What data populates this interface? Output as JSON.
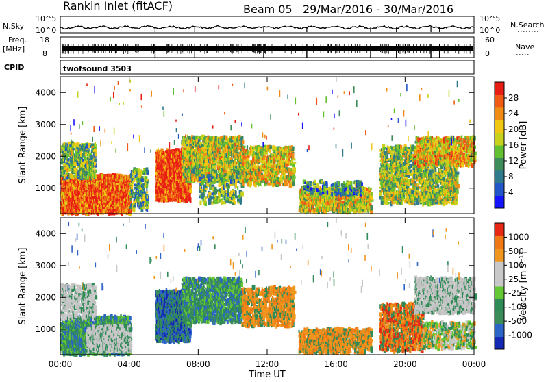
{
  "header": {
    "station": "Rankin Inlet (fitACF)",
    "beam": "Beam 05",
    "date_range": "29/Mar/2016 - 30/Mar/2016"
  },
  "panels": {
    "nsky": {
      "label": "N.Sky",
      "ticks_left": [
        "10^5",
        "10^0"
      ],
      "ticks_right": [
        "10^5",
        "10^0"
      ],
      "right_label": "N.Search"
    },
    "freq": {
      "label_top": "Freq.",
      "label_bottom": "[MHz]",
      "ticks_left": [
        "18",
        "8"
      ],
      "ticks_right": [
        "60",
        "0"
      ],
      "right_label": "Nave"
    },
    "cpid": {
      "label": "CPID",
      "program": "twofsound 3503"
    }
  },
  "chart_data": [
    {
      "type": "heatmap",
      "name": "power",
      "xlabel": "",
      "ylabel": "Slant Range [km]",
      "y_ticks": [
        "1000",
        "2000",
        "3000",
        "4000"
      ],
      "ylim": [
        200,
        4500
      ],
      "colorbar": {
        "label": "Power [dB]",
        "ticks": [
          "4",
          "8",
          "12",
          "16",
          "20",
          "24",
          "28"
        ],
        "colors": [
          "#1414ff",
          "#2255c8",
          "#2f7a8c",
          "#3e8c5a",
          "#63c030",
          "#c8d21e",
          "#f0c814",
          "#f08c14",
          "#f05a14",
          "#e81e14"
        ]
      },
      "blobs": [
        {
          "t": [
            0.0,
            4.0
          ],
          "r": [
            200,
            1400
          ],
          "level": 0.85,
          "density": 0.75
        },
        {
          "t": [
            0.0,
            2.0
          ],
          "r": [
            1300,
            2400
          ],
          "level": 0.45,
          "density": 0.45
        },
        {
          "t": [
            4.0,
            5.0
          ],
          "r": [
            300,
            1600
          ],
          "level": 0.4,
          "density": 0.35
        },
        {
          "t": [
            5.5,
            7.5
          ],
          "r": [
            600,
            2200
          ],
          "level": 0.9,
          "density": 0.7
        },
        {
          "t": [
            7.0,
            10.5
          ],
          "r": [
            1200,
            2600
          ],
          "level": 0.55,
          "density": 0.55
        },
        {
          "t": [
            8.0,
            10.5
          ],
          "r": [
            500,
            1400
          ],
          "level": 0.4,
          "density": 0.3
        },
        {
          "t": [
            10.5,
            13.5
          ],
          "r": [
            1100,
            2300
          ],
          "level": 0.6,
          "density": 0.45
        },
        {
          "t": [
            13.8,
            18.0
          ],
          "r": [
            250,
            1000
          ],
          "level": 0.6,
          "density": 0.55
        },
        {
          "t": [
            14.0,
            17.5
          ],
          "r": [
            800,
            1200
          ],
          "level": 0.3,
          "density": 0.3
        },
        {
          "t": [
            18.5,
            23.0
          ],
          "r": [
            500,
            2300
          ],
          "level": 0.5,
          "density": 0.45
        },
        {
          "t": [
            20.5,
            24.0
          ],
          "r": [
            1700,
            2600
          ],
          "level": 0.65,
          "density": 0.5
        }
      ]
    },
    {
      "type": "heatmap",
      "name": "velocity",
      "xlabel": "Time UT",
      "ylabel": "Slant Range [km]",
      "x_ticks": [
        "00:00",
        "04:00",
        "08:00",
        "12:00",
        "16:00",
        "20:00",
        "00:00"
      ],
      "y_ticks": [
        "1000",
        "2000",
        "3000",
        "4000"
      ],
      "ylim": [
        200,
        4500
      ],
      "colorbar": {
        "label": "Velocity [m s⁻¹]",
        "ticks": [
          "1000",
          "500",
          "100",
          "25",
          "-25",
          "-100",
          "-500",
          "-1000"
        ],
        "colors": [
          "#1428b4",
          "#2d64c8",
          "#3c8c5a",
          "#2e8b57",
          "#64c832",
          "#c8c8c8",
          "#c8c8c8",
          "#f0961e",
          "#f07814",
          "#e62814"
        ]
      },
      "blobs": [
        {
          "t": [
            0.0,
            4.0
          ],
          "r": [
            200,
            1400
          ],
          "mode": "green",
          "density": 0.7
        },
        {
          "t": [
            1.5,
            4.0
          ],
          "r": [
            300,
            1100
          ],
          "mode": "grey",
          "density": 0.7
        },
        {
          "t": [
            0.0,
            2.0
          ],
          "r": [
            1300,
            2400
          ],
          "mode": "grey",
          "density": 0.4
        },
        {
          "t": [
            5.5,
            7.5
          ],
          "r": [
            600,
            2200
          ],
          "mode": "blue",
          "density": 0.7
        },
        {
          "t": [
            7.0,
            10.5
          ],
          "r": [
            1200,
            2600
          ],
          "mode": "green",
          "density": 0.55
        },
        {
          "t": [
            10.5,
            13.5
          ],
          "r": [
            1100,
            2300
          ],
          "mode": "orange",
          "density": 0.45
        },
        {
          "t": [
            13.8,
            18.0
          ],
          "r": [
            250,
            1000
          ],
          "mode": "orange",
          "density": 0.55
        },
        {
          "t": [
            18.5,
            21.0
          ],
          "r": [
            300,
            1800
          ],
          "mode": "orangered",
          "density": 0.5
        },
        {
          "t": [
            20.5,
            24.0
          ],
          "r": [
            1500,
            2600
          ],
          "mode": "grey",
          "density": 0.55
        },
        {
          "t": [
            21.0,
            24.0
          ],
          "r": [
            400,
            1200
          ],
          "mode": "greenorange",
          "density": 0.4
        }
      ]
    }
  ]
}
